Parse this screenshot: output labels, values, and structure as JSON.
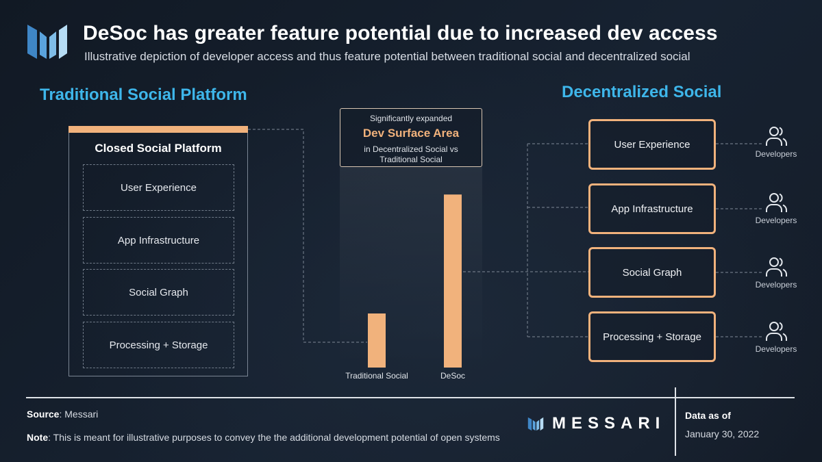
{
  "header": {
    "title": "DeSoc has greater feature potential due to increased dev access",
    "subtitle": "Illustrative depiction of developer access and thus feature potential between traditional social and decentralized social"
  },
  "traditional": {
    "heading": "Traditional Social Platform",
    "box_title": "Closed Social Platform",
    "layers": [
      "User Experience",
      "App Infrastructure",
      "Social Graph",
      "Processing + Storage"
    ]
  },
  "callout": {
    "top": "Significantly expanded",
    "main": "Dev Surface Area",
    "bottom_line1": "in Decentralized Social vs",
    "bottom_line2": "Traditional Social"
  },
  "chart_data": {
    "type": "bar",
    "categories": [
      "Traditional Social",
      "DeSoc"
    ],
    "values": [
      1,
      3.2
    ],
    "note": "illustrative relative heights, no axis shown"
  },
  "decentralized": {
    "heading": "Decentralized Social",
    "layers": [
      "User Experience",
      "App Infrastructure",
      "Social Graph",
      "Processing + Storage"
    ],
    "developer_label": "Developers"
  },
  "footer": {
    "source_key": "Source",
    "source_value": ": Messari",
    "note_key": "Note",
    "note_value": ": This is meant for illustrative purposes to convey the the additional development potential of open systems",
    "brand": "MESSARI",
    "data_as_of_label": "Data as of",
    "data_as_of_date": "January 30, 2022"
  },
  "colors": {
    "accent_orange": "#f1b27c",
    "heading_blue": "#3eb6ea",
    "background": "#141c28"
  },
  "icons": {
    "logo": "messari-logo-icon",
    "developers": "users-icon"
  }
}
